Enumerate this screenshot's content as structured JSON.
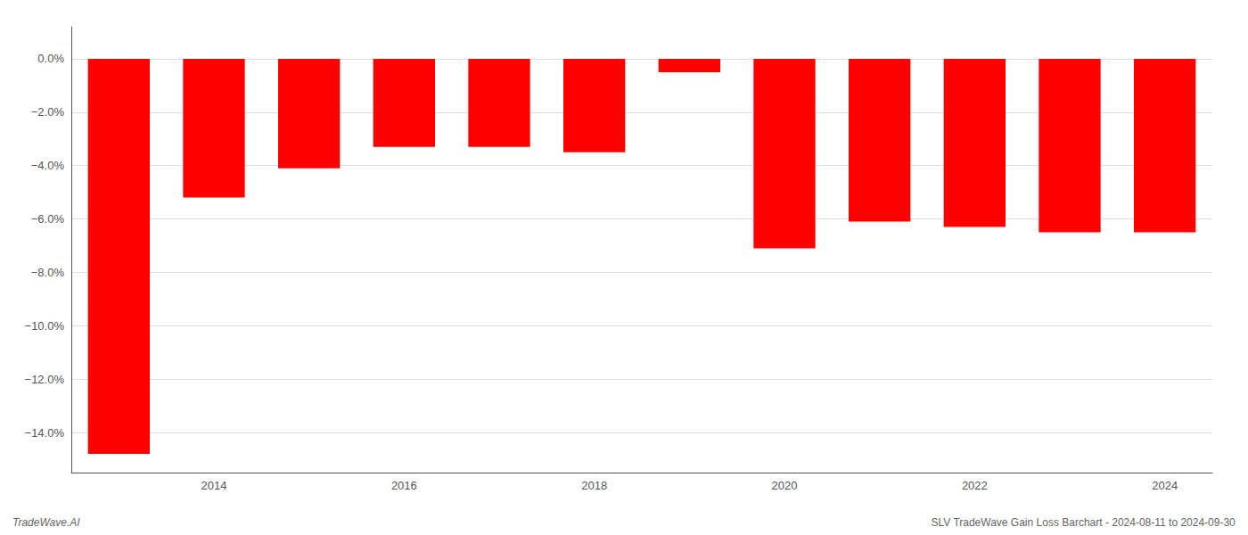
{
  "chart_data": {
    "type": "bar",
    "categories": [
      null,
      "2014",
      null,
      "2016",
      null,
      "2018",
      null,
      "2020",
      null,
      "2022",
      null,
      "2024"
    ],
    "values": [
      -14.8,
      -5.2,
      -4.1,
      -3.3,
      -3.3,
      -3.5,
      -0.5,
      -7.1,
      -6.1,
      -6.3,
      -6.5,
      -6.5
    ],
    "color": "#FF0000",
    "ylim": [
      -15.5,
      1.2
    ],
    "yticks": [
      {
        "value": 0.0,
        "label": "0.0%"
      },
      {
        "value": -2.0,
        "label": "−2.0%"
      },
      {
        "value": -4.0,
        "label": "−4.0%"
      },
      {
        "value": -6.0,
        "label": "−6.0%"
      },
      {
        "value": -8.0,
        "label": "−8.0%"
      },
      {
        "value": -10.0,
        "label": "−10.0%"
      },
      {
        "value": -12.0,
        "label": "−12.0%"
      },
      {
        "value": -14.0,
        "label": "−14.0%"
      }
    ],
    "grid": true,
    "annotations": [
      "TradeWave.AI",
      "SLV TradeWave Gain Loss Barchart - 2024-08-11 to 2024-09-30"
    ]
  }
}
